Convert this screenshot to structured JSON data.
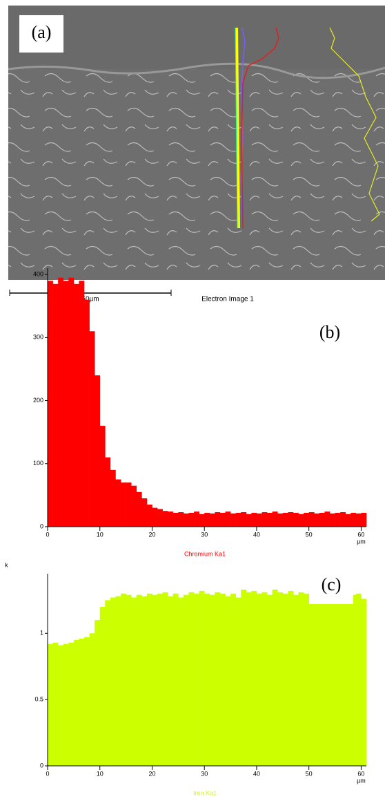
{
  "panel_a": {
    "label": "(a)",
    "scale_bar": "50µm",
    "caption": "Electron Image 1"
  },
  "chart_data": [
    {
      "type": "histogram",
      "label": "(b)",
      "x_unit": "µm",
      "series": [
        {
          "name": "Chromium Ka1",
          "color": "#ff0000",
          "values": [
            390,
            385,
            395,
            390,
            395,
            385,
            390,
            360,
            310,
            240,
            160,
            110,
            90,
            75,
            70,
            70,
            65,
            55,
            45,
            35,
            30,
            28,
            25,
            24,
            22,
            23,
            21,
            22,
            24,
            20,
            22,
            21,
            23,
            22,
            24,
            21,
            22,
            23,
            20,
            22,
            21,
            23,
            22,
            24,
            21,
            22,
            23,
            22,
            20,
            22,
            23,
            21,
            22,
            24,
            21,
            22,
            23,
            20,
            22,
            21,
            22
          ]
        }
      ],
      "bins": [
        0,
        1,
        2,
        3,
        4,
        5,
        6,
        7,
        8,
        9,
        10,
        11,
        12,
        13,
        14,
        15,
        16,
        17,
        18,
        19,
        20,
        21,
        22,
        23,
        24,
        25,
        26,
        27,
        28,
        29,
        30,
        31,
        32,
        33,
        34,
        35,
        36,
        37,
        38,
        39,
        40,
        41,
        42,
        43,
        44,
        45,
        46,
        47,
        48,
        49,
        50,
        51,
        52,
        53,
        54,
        55,
        56,
        57,
        58,
        59,
        60,
        61
      ],
      "xlim": [
        0,
        61
      ],
      "xticks": [
        0,
        10,
        20,
        30,
        40,
        50,
        60
      ],
      "ylim": [
        0,
        410
      ],
      "yticks": [
        0,
        100,
        200,
        300,
        400
      ]
    },
    {
      "type": "histogram",
      "label": "(c)",
      "x_unit": "µm",
      "y_unit": "k",
      "series": [
        {
          "name": "Iron Ka1",
          "color": "#ccff00",
          "values": [
            0.92,
            0.93,
            0.91,
            0.92,
            0.93,
            0.95,
            0.96,
            0.97,
            1.0,
            1.1,
            1.2,
            1.25,
            1.27,
            1.28,
            1.3,
            1.29,
            1.27,
            1.29,
            1.28,
            1.3,
            1.29,
            1.3,
            1.31,
            1.28,
            1.3,
            1.27,
            1.29,
            1.31,
            1.3,
            1.32,
            1.3,
            1.29,
            1.31,
            1.3,
            1.28,
            1.3,
            1.27,
            1.33,
            1.31,
            1.32,
            1.3,
            1.31,
            1.29,
            1.33,
            1.31,
            1.3,
            1.32,
            1.29,
            1.31,
            1.3,
            1.32,
            1.31,
            1.29,
            1.3,
            1.32,
            1.33,
            1.3,
            1.31,
            1.29,
            1.3,
            1.26
          ]
        }
      ],
      "bins": [
        0,
        1,
        2,
        3,
        4,
        5,
        6,
        7,
        8,
        9,
        10,
        11,
        12,
        13,
        14,
        15,
        16,
        17,
        18,
        19,
        20,
        21,
        22,
        23,
        24,
        25,
        26,
        27,
        28,
        29,
        30,
        31,
        32,
        33,
        34,
        35,
        36,
        37,
        38,
        39,
        40,
        41,
        42,
        43,
        44,
        45,
        46,
        47,
        48,
        49,
        50,
        51,
        52,
        53,
        54,
        55,
        56,
        57,
        58,
        59,
        60,
        61
      ],
      "xlim": [
        0,
        61
      ],
      "xticks": [
        0,
        10,
        20,
        30,
        40,
        50,
        60
      ],
      "ylim": [
        0,
        1.45
      ],
      "yticks": [
        0,
        0.5,
        1
      ]
    }
  ]
}
